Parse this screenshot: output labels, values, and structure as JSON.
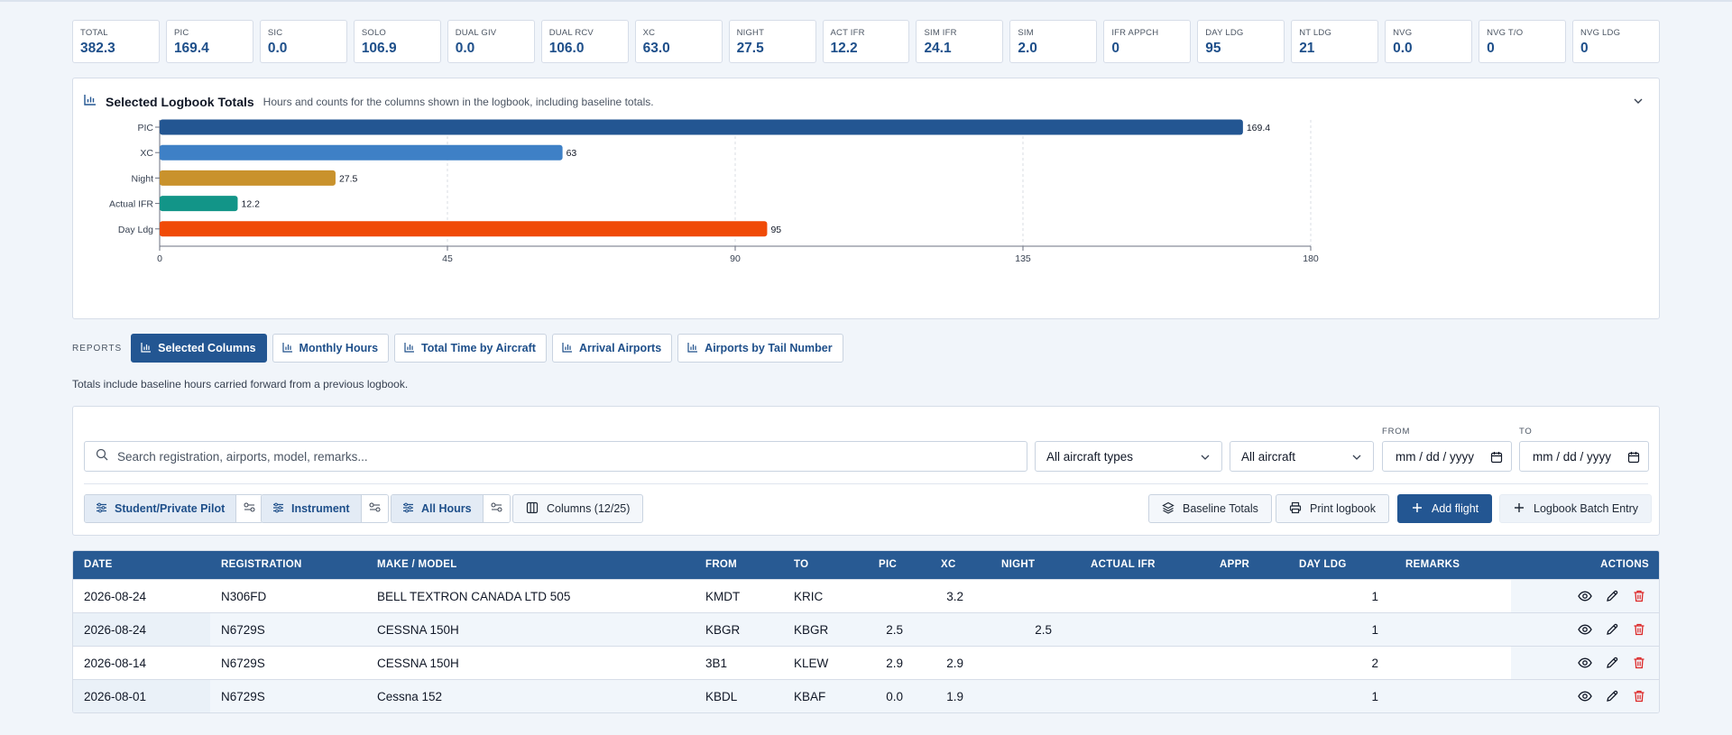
{
  "stats": [
    {
      "label": "TOTAL",
      "value": "382.3"
    },
    {
      "label": "PIC",
      "value": "169.4"
    },
    {
      "label": "SIC",
      "value": "0.0"
    },
    {
      "label": "SOLO",
      "value": "106.9"
    },
    {
      "label": "DUAL GIV",
      "value": "0.0"
    },
    {
      "label": "DUAL RCV",
      "value": "106.0"
    },
    {
      "label": "XC",
      "value": "63.0"
    },
    {
      "label": "NIGHT",
      "value": "27.5"
    },
    {
      "label": "ACT IFR",
      "value": "12.2"
    },
    {
      "label": "SIM IFR",
      "value": "24.1"
    },
    {
      "label": "SIM",
      "value": "2.0"
    },
    {
      "label": "IFR APPCH",
      "value": "0"
    },
    {
      "label": "DAY LDG",
      "value": "95"
    },
    {
      "label": "NT LDG",
      "value": "21"
    },
    {
      "label": "NVG",
      "value": "0.0"
    },
    {
      "label": "NVG T/O",
      "value": "0"
    },
    {
      "label": "NVG LDG",
      "value": "0"
    }
  ],
  "chart_panel": {
    "title": "Selected Logbook Totals",
    "subtitle": "Hours and counts for the columns shown in the logbook, including baseline totals."
  },
  "chart_data": {
    "type": "bar",
    "orientation": "horizontal",
    "categories": [
      "PIC",
      "XC",
      "Night",
      "Actual IFR",
      "Day Ldg"
    ],
    "values": [
      169.4,
      63,
      27.5,
      12.2,
      95
    ],
    "value_labels": [
      "169.4",
      "63",
      "27.5",
      "12.2",
      "95"
    ],
    "colors": [
      "#235692",
      "#3e80c6",
      "#c9922c",
      "#129588",
      "#f04a07"
    ],
    "xlim": [
      0,
      180
    ],
    "xticks": [
      0,
      45,
      90,
      135,
      180
    ],
    "grid": true,
    "title": "",
    "xlabel": "",
    "ylabel": ""
  },
  "reports": {
    "label": "REPORTS",
    "buttons": [
      {
        "label": "Selected Columns",
        "active": true
      },
      {
        "label": "Monthly Hours",
        "active": false
      },
      {
        "label": "Total Time by Aircraft",
        "active": false
      },
      {
        "label": "Arrival Airports",
        "active": false
      },
      {
        "label": "Airports by Tail Number",
        "active": false
      }
    ],
    "note": "Totals include baseline hours carried forward from a previous logbook."
  },
  "filters": {
    "search_placeholder": "Search registration, airports, model, remarks...",
    "aircraft_type": "All aircraft types",
    "aircraft": "All aircraft",
    "from_label": "FROM",
    "from_value": "mm / dd / yyyy",
    "to_label": "TO",
    "to_value": "mm / dd / yyyy",
    "presets": [
      "Student/Private Pilot",
      "Instrument",
      "All Hours"
    ],
    "columns_label": "Columns (12/25)",
    "baseline_label": "Baseline Totals",
    "print_label": "Print logbook",
    "add_label": "Add flight",
    "batch_label": "Logbook Batch Entry"
  },
  "table": {
    "headers": [
      "DATE",
      "REGISTRATION",
      "MAKE / MODEL",
      "FROM",
      "TO",
      "PIC",
      "XC",
      "NIGHT",
      "ACTUAL IFR",
      "APPR",
      "DAY LDG",
      "REMARKS",
      "ACTIONS"
    ],
    "rows": [
      {
        "date": "2026-08-24",
        "reg": "N306FD",
        "model": "BELL TEXTRON CANADA LTD 505",
        "from": "KMDT",
        "to": "KRIC",
        "pic": "",
        "xc": "3.2",
        "night": "",
        "ifr": "",
        "appr": "",
        "ldg": "1",
        "remarks": ""
      },
      {
        "date": "2026-08-24",
        "reg": "N6729S",
        "model": "CESSNA 150H",
        "from": "KBGR",
        "to": "KBGR",
        "pic": "2.5",
        "xc": "",
        "night": "2.5",
        "ifr": "",
        "appr": "",
        "ldg": "1",
        "remarks": ""
      },
      {
        "date": "2026-08-14",
        "reg": "N6729S",
        "model": "CESSNA 150H",
        "from": "3B1",
        "to": "KLEW",
        "pic": "2.9",
        "xc": "2.9",
        "night": "",
        "ifr": "",
        "appr": "",
        "ldg": "2",
        "remarks": ""
      },
      {
        "date": "2026-08-01",
        "reg": "N6729S",
        "model": "Cessna 152",
        "from": "KBDL",
        "to": "KBAF",
        "pic": "0.0",
        "xc": "1.9",
        "night": "",
        "ifr": "",
        "appr": "",
        "ldg": "1",
        "remarks": ""
      }
    ]
  }
}
